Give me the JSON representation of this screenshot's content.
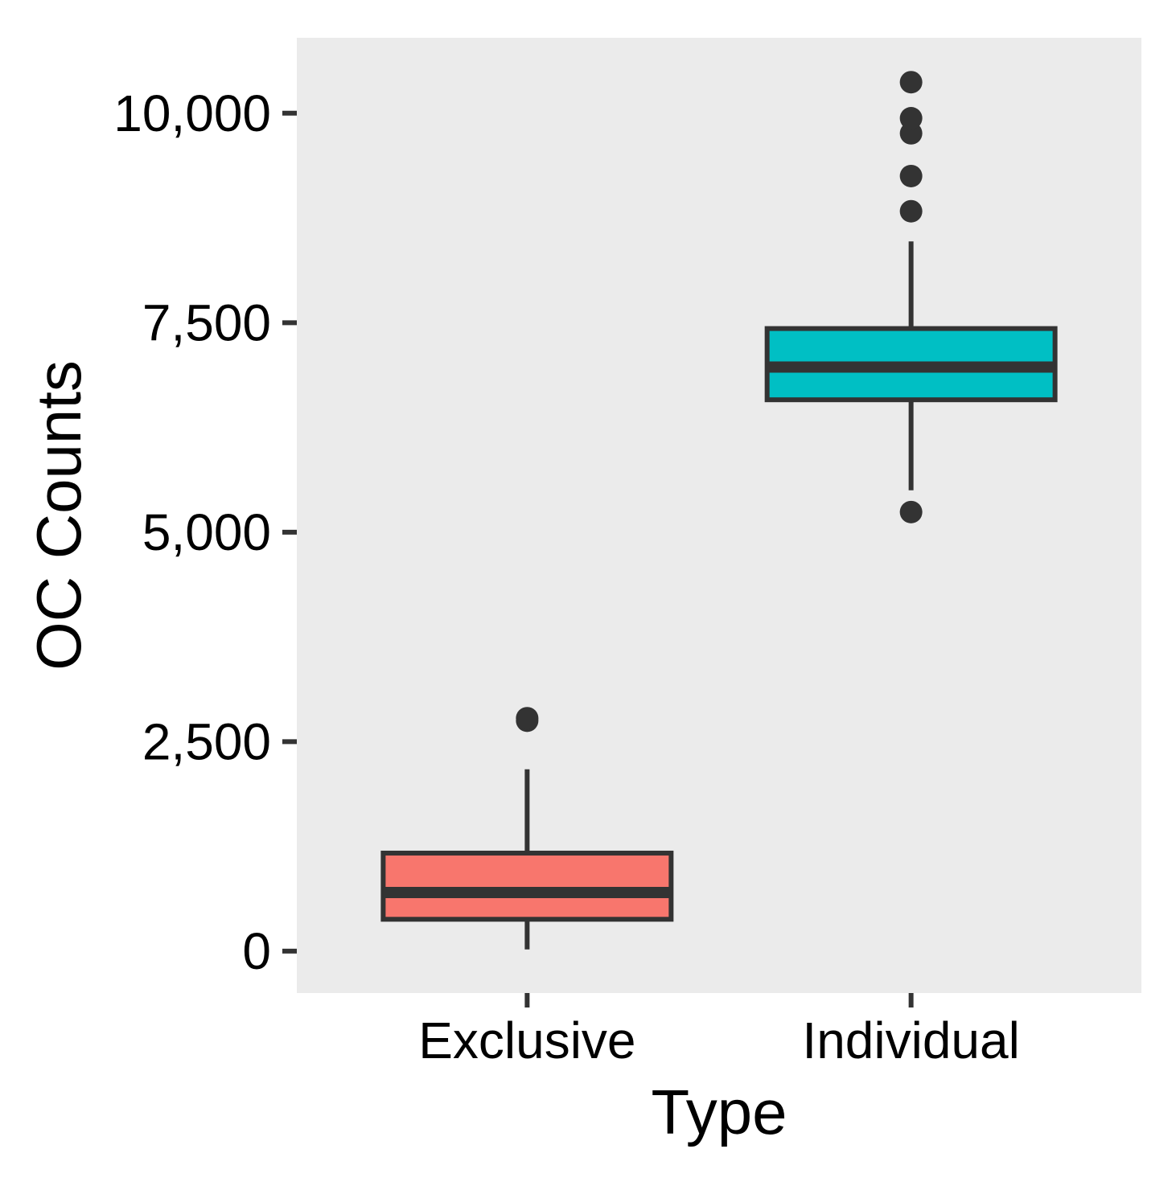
{
  "chart_data": {
    "type": "boxplot",
    "xlabel": "Type",
    "ylabel": "OC Counts",
    "categories": [
      "Exclusive",
      "Individual"
    ],
    "ylim": [
      -500,
      10900
    ],
    "y_ticks": [
      0,
      2500,
      5000,
      7500,
      10000
    ],
    "y_tick_labels": [
      "0",
      "2,500",
      "5,000",
      "7,500",
      "10,000"
    ],
    "grid": false,
    "legend": "none",
    "boxes": [
      {
        "category": "Exclusive",
        "whisker_low": 20,
        "q1": 380,
        "median": 700,
        "q3": 1170,
        "whisker_high": 2170,
        "outliers": [
          2750,
          2780
        ],
        "color": "#F8766D"
      },
      {
        "category": "Individual",
        "whisker_low": 5500,
        "q1": 6580,
        "median": 6970,
        "q3": 7430,
        "whisker_high": 8470,
        "outliers": [
          5240,
          8830,
          9250,
          9760,
          9940,
          10370
        ],
        "color": "#00BFC4"
      }
    ],
    "panel_color": "#EBEBEB",
    "line_color": "#333333"
  }
}
